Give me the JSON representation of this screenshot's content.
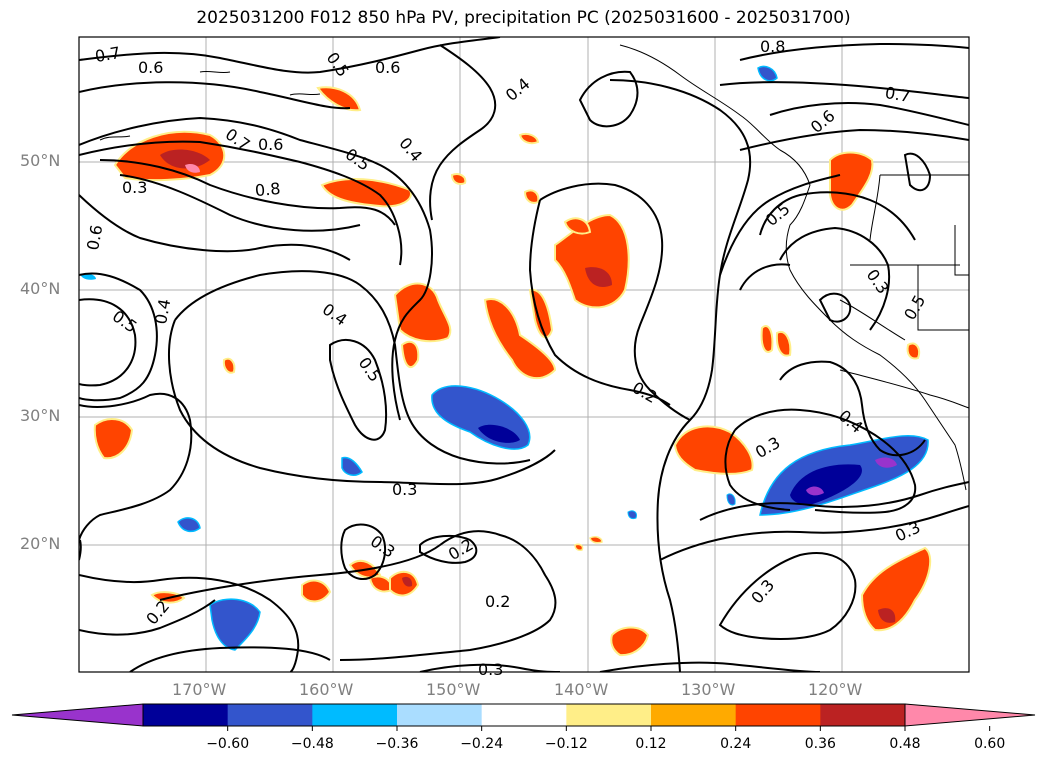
{
  "title": "2025031200 F012 850 hPa PV, precipitation PC (2025031600 - 2025031700)",
  "lat_labels": [
    "50°N",
    "40°N",
    "30°N",
    "20°N"
  ],
  "lon_labels": [
    "170°W",
    "160°W",
    "150°W",
    "140°W",
    "130°W",
    "120°W"
  ],
  "contour_labels": [
    "0.7",
    "0.6",
    "0.5",
    "0.8",
    "0.7",
    "0.6",
    "0.3",
    "0.6",
    "0.5",
    "0.4",
    "0.5",
    "0.4",
    "0.3",
    "0.2",
    "0.3",
    "0.2",
    "0.2",
    "0.3",
    "0.4",
    "0.5",
    "0.6",
    "0.7",
    "0.8",
    "0.4",
    "0.6",
    "0.5",
    "0.3",
    "0.3",
    "0.5",
    "0.4",
    "0.2",
    "0.3",
    "0.3"
  ],
  "colorbar": {
    "ticks": [
      "−0.60",
      "−0.48",
      "−0.36",
      "−0.24",
      "−0.12",
      "0.12",
      "0.24",
      "0.36",
      "0.48",
      "0.60"
    ],
    "colors": [
      "#9933cc",
      "#000099",
      "#3355cc",
      "#00bbff",
      "#aaddff",
      "#ffffff",
      "#ffee88",
      "#ffaa00",
      "#ff4400",
      "#bb2222",
      "#ff88aa"
    ]
  },
  "colors": {
    "contour": "#000000",
    "grid": "#b0b0b0",
    "neg_strong": "#000099",
    "neg_mid": "#3355cc",
    "neg_light": "#00bbff",
    "pos_light": "#ffee88",
    "pos_mid": "#ff4400",
    "pos_strong": "#bb2222",
    "pos_max": "#ff88aa",
    "purple": "#9933cc"
  }
}
